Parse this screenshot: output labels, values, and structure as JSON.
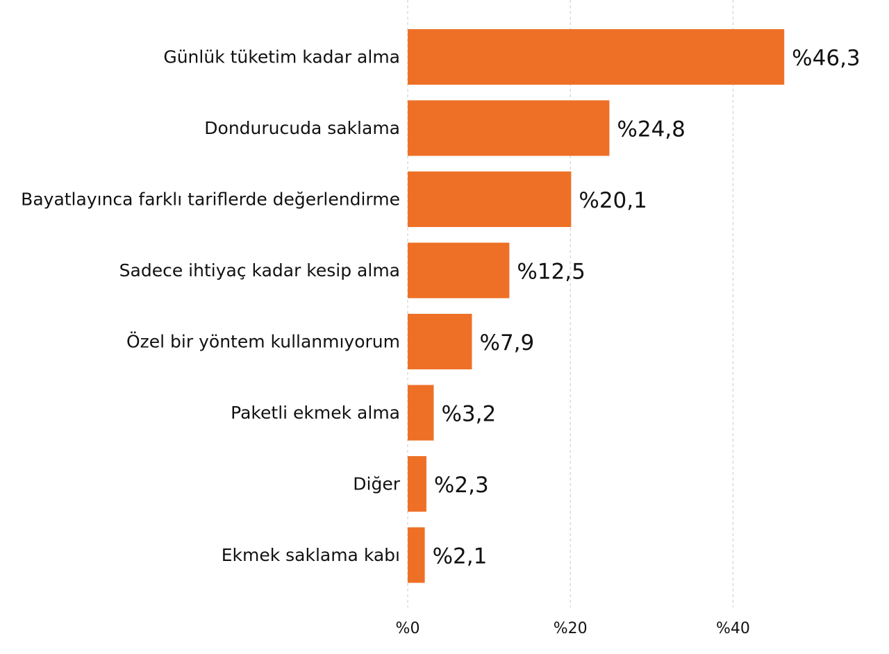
{
  "chart_data": {
    "type": "bar",
    "orientation": "horizontal",
    "categories": [
      "Günlük tüketim kadar alma",
      "Dondurucuda saklama",
      "Bayatlayınca farklı tariflerde değerlendirme",
      "Sadece ihtiyaç kadar kesip alma",
      "Özel bir yöntem kullanmıyorum",
      "Paketli ekmek alma",
      "Diğer",
      "Ekmek saklama kabı"
    ],
    "values": [
      46.3,
      24.8,
      20.1,
      12.5,
      7.9,
      3.2,
      2.3,
      2.1
    ],
    "value_labels": [
      "%46,3",
      "%24,8",
      "%20,1",
      "%12,5",
      "%7,9",
      "%3,2",
      "%2,3",
      "%2,1"
    ],
    "xticks": [
      0,
      20,
      40
    ],
    "xtick_labels": [
      "%0",
      "%20",
      "%40"
    ],
    "xlim": [
      0,
      46.3
    ],
    "grid": true,
    "bar_color": "#ee7027"
  }
}
